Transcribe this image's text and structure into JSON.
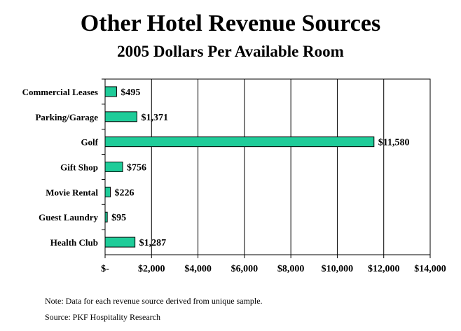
{
  "chart_data": {
    "type": "bar",
    "orientation": "horizontal",
    "title": "Other Hotel Revenue Sources",
    "subtitle": "2005 Dollars Per Available Room",
    "categories": [
      "Commercial Leases",
      "Parking/Garage",
      "Golf",
      "Gift Shop",
      "Movie Rental",
      "Guest Laundry",
      "Health Club"
    ],
    "values": [
      495,
      1371,
      11580,
      756,
      226,
      95,
      1287
    ],
    "value_labels": [
      "$495",
      "$1,371",
      "$11,580",
      "$756",
      "$226",
      "$95",
      "$1,287"
    ],
    "xlim": [
      0,
      14000
    ],
    "x_ticks": [
      0,
      2000,
      4000,
      6000,
      8000,
      10000,
      12000,
      14000
    ],
    "x_tick_labels": [
      "$-",
      "$2,000",
      "$4,000",
      "$6,000",
      "$8,000",
      "$10,000",
      "$12,000",
      "$14,000"
    ],
    "grid": "vertical",
    "bar_color": "#1fcc99",
    "xlabel": "",
    "ylabel": ""
  },
  "notes": {
    "note": "Note: Data for each revenue source derived from unique sample.",
    "source": "Source: PKF Hospitality Research"
  }
}
